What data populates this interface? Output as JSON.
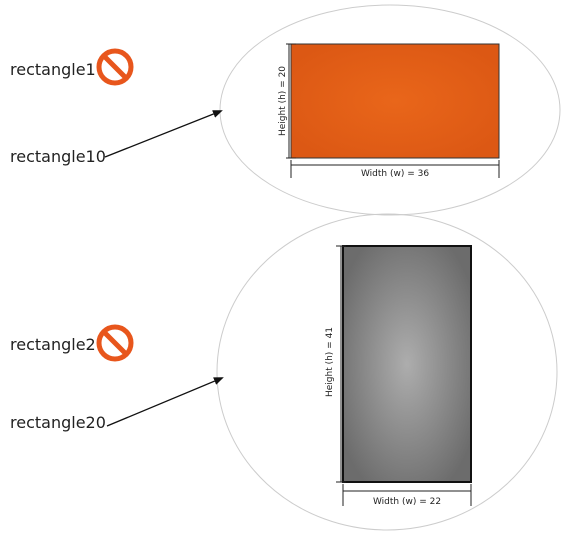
{
  "colors": {
    "rect1_fill": "#e05a16",
    "rect2_fill_center": "#a8a8a8",
    "rect2_fill_edge": "#6e6e6e",
    "no_sign": "#e8561c",
    "line": "#111111",
    "ellipse": "#cccccc"
  },
  "icons": {
    "no_sign": "prohibited-icon"
  },
  "labels": {
    "rect1": "rectangle1",
    "rect10": "rectangle10",
    "rect2": "rectangle2",
    "rect20": "rectangle20"
  },
  "shapes": {
    "rect1": {
      "height_label": "Height (h) = 20",
      "width_label": "Width (w) = 36"
    },
    "rect2": {
      "height_label": "Height (h) = 41",
      "width_label": "Width (w) = 22"
    }
  }
}
